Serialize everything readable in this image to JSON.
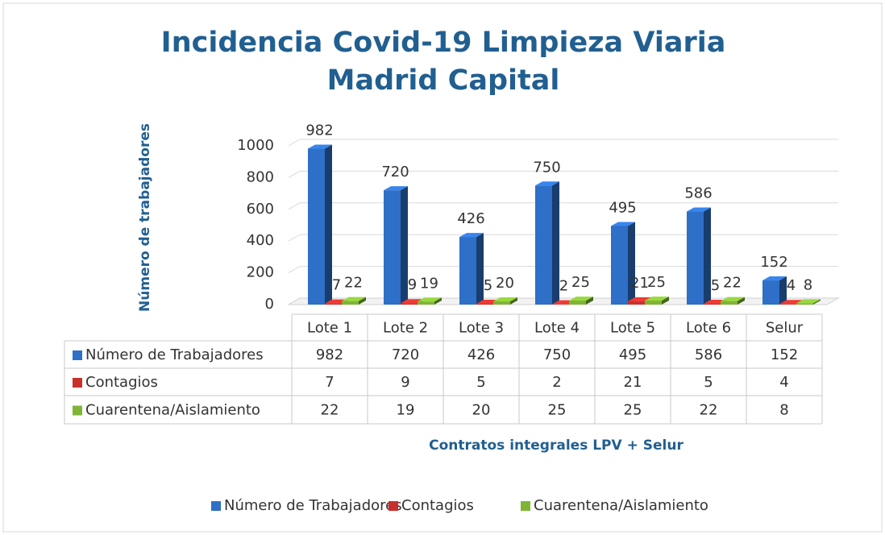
{
  "chart_data": {
    "type": "bar",
    "title": "Incidencia Covid-19 Limpieza Viaria Madrid Capital",
    "ylabel": "Número de trabajadores",
    "xlabel": "Contratos integrales LPV + Selur",
    "categories": [
      "Lote 1",
      "Lote 2",
      "Lote 3",
      "Lote 4",
      "Lote 5",
      "Lote 6",
      "Selur"
    ],
    "series": [
      {
        "name": "Número de Trabajadores",
        "color": "#2e6fc7",
        "values": [
          982,
          720,
          426,
          750,
          495,
          586,
          152
        ]
      },
      {
        "name": "Contagios",
        "color": "#c9302c",
        "values": [
          7,
          9,
          5,
          2,
          21,
          5,
          4
        ]
      },
      {
        "name": "Cuarentena/Aislamiento",
        "color": "#7fb534",
        "values": [
          22,
          19,
          20,
          25,
          25,
          22,
          8
        ]
      }
    ],
    "ylim": [
      0,
      1000
    ],
    "yticks": [
      0,
      200,
      400,
      600,
      800,
      1000
    ],
    "grid": true,
    "legend": "bottom"
  }
}
